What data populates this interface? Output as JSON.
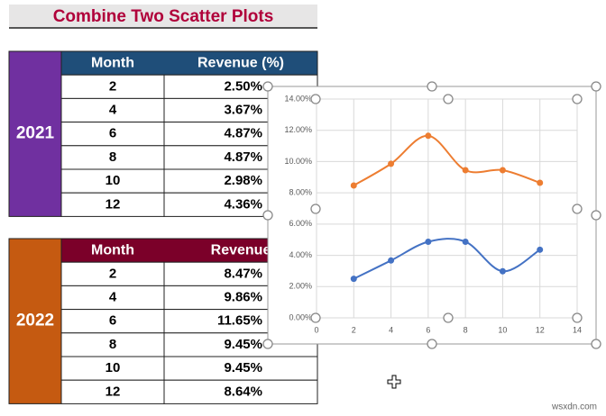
{
  "title": "Combine Two Scatter Plots",
  "tables": [
    {
      "label": "2021",
      "header": [
        "Month",
        "Revenue (%)"
      ],
      "rows": [
        [
          2,
          "2.50%"
        ],
        [
          4,
          "3.67%"
        ],
        [
          6,
          "4.87%"
        ],
        [
          8,
          "4.87%"
        ],
        [
          10,
          "2.98%"
        ],
        [
          12,
          "4.36%"
        ]
      ]
    },
    {
      "label": "2022",
      "header": [
        "Month",
        "Revenue"
      ],
      "rows": [
        [
          2,
          "8.47%"
        ],
        [
          4,
          "9.86%"
        ],
        [
          6,
          "11.65%"
        ],
        [
          8,
          "9.45%"
        ],
        [
          10,
          "9.45%"
        ],
        [
          12,
          "8.64%"
        ]
      ]
    }
  ],
  "chart_data": {
    "type": "scatter",
    "smooth": true,
    "x": [
      2,
      4,
      6,
      8,
      10,
      12
    ],
    "series": [
      {
        "color": "#4472c4",
        "values": [
          2.5,
          3.67,
          4.87,
          4.87,
          2.98,
          4.36
        ]
      },
      {
        "color": "#ed7d31",
        "values": [
          8.47,
          9.86,
          11.65,
          9.45,
          9.45,
          8.64
        ]
      }
    ],
    "xlim": [
      0,
      14
    ],
    "xticks": [
      0,
      2,
      4,
      6,
      8,
      10,
      12,
      14
    ],
    "ylim": [
      0,
      14
    ],
    "yticks": [
      {
        "value": 0,
        "label": "0.00%"
      },
      {
        "value": 2,
        "label": "2.00%"
      },
      {
        "value": 4,
        "label": "4.00%"
      },
      {
        "value": 6,
        "label": "6.00%"
      },
      {
        "value": 8,
        "label": "8.00%"
      },
      {
        "value": 10,
        "label": "10.00%"
      },
      {
        "value": 12,
        "label": "12.00%"
      },
      {
        "value": 14,
        "label": "14.00%"
      }
    ],
    "grid": true
  },
  "watermark": "wsxdn.com"
}
